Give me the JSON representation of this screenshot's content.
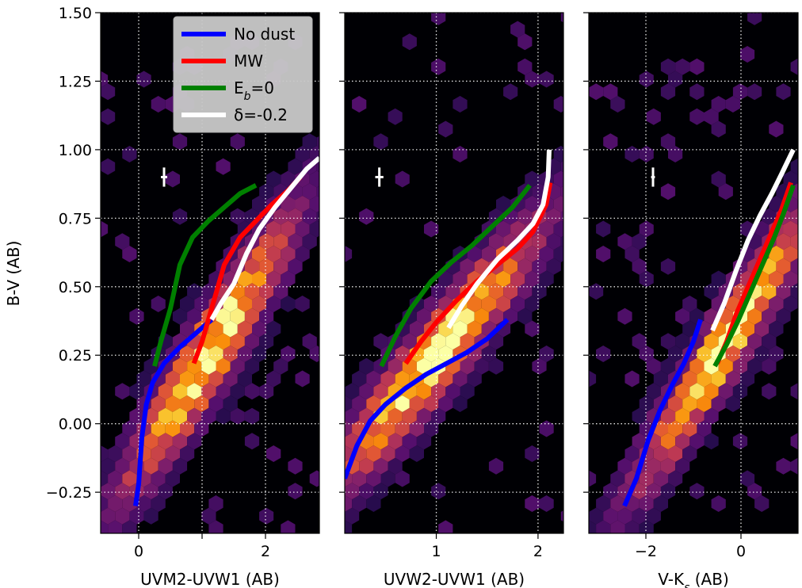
{
  "chart_data": {
    "type": "scatter",
    "shared_y": {
      "ylabel": "B-V (AB)",
      "ylim": [
        -0.4,
        1.5
      ],
      "yticks": [
        -0.25,
        0.0,
        0.25,
        0.5,
        0.75,
        1.0,
        1.25,
        1.5
      ],
      "ytick_labels": [
        "−0.25",
        "0.00",
        "0.25",
        "0.50",
        "0.75",
        "1.00",
        "1.25",
        "1.50"
      ]
    },
    "legend": {
      "placement": "top-right of first panel",
      "entries": [
        {
          "label": "No dust",
          "color": "#0000ff"
        },
        {
          "label": "MW",
          "color": "#ff0000"
        },
        {
          "label": "E_b=0",
          "label_main": "E",
          "label_sub": "b",
          "label_tail": "=0",
          "color": "#008000"
        },
        {
          "label": "δ=-0.2",
          "color": "#ffffff"
        }
      ]
    },
    "grid": true,
    "background": "#000004",
    "hexbin_colormap": "inferno",
    "panels": [
      {
        "xlabel": "UVM2-UVW1 (AB)",
        "xlim": [
          -0.6,
          2.85
        ],
        "xticks": [
          0,
          1,
          2
        ],
        "xtick_labels": [
          "0",
          "",
          "2"
        ],
        "density": {
          "center": [
            1.1,
            0.25
          ],
          "axis_slope": 0.36,
          "spread_along": 0.95,
          "spread_across": 0.11
        },
        "error_bar": {
          "x": 0.4,
          "y": 0.9,
          "xerr": 0.05,
          "yerr": 0.035
        },
        "series": [
          {
            "name": "No dust",
            "color": "#0000ff",
            "x": [
              -0.05,
              0.0,
              0.05,
              0.12,
              0.22,
              0.4,
              0.65,
              0.9,
              1.15
            ],
            "y": [
              -0.3,
              -0.22,
              -0.05,
              0.07,
              0.15,
              0.22,
              0.28,
              0.33,
              0.38
            ]
          },
          {
            "name": "MW",
            "color": "#ff0000",
            "x": [
              0.87,
              1.0,
              1.15,
              1.35,
              1.6,
              1.85,
              2.1,
              2.35,
              2.55
            ],
            "y": [
              0.22,
              0.3,
              0.42,
              0.58,
              0.68,
              0.74,
              0.8,
              0.85,
              0.9
            ]
          },
          {
            "name": "E_b=0",
            "color": "#008000",
            "x": [
              0.25,
              0.35,
              0.5,
              0.65,
              0.85,
              1.1,
              1.35,
              1.6,
              1.85
            ],
            "y": [
              0.21,
              0.3,
              0.42,
              0.58,
              0.68,
              0.74,
              0.79,
              0.84,
              0.87
            ]
          },
          {
            "name": "δ=-0.2",
            "color": "#ffffff",
            "x": [
              1.15,
              1.3,
              1.5,
              1.7,
              1.9,
              2.15,
              2.4,
              2.65,
              2.85
            ],
            "y": [
              0.38,
              0.44,
              0.51,
              0.62,
              0.71,
              0.79,
              0.86,
              0.93,
              0.97
            ]
          }
        ]
      },
      {
        "xlabel": "UVW2-UVW1 (AB)",
        "xlim": [
          0.1,
          2.25
        ],
        "xticks": [
          1,
          2
        ],
        "xtick_labels": [
          "1",
          "2"
        ],
        "density": {
          "center": [
            1.0,
            0.25
          ],
          "axis_slope": 0.45,
          "spread_along": 0.75,
          "spread_across": 0.1
        },
        "error_bar": {
          "x": 0.44,
          "y": 0.9,
          "xerr": 0.04,
          "yerr": 0.035
        },
        "series": [
          {
            "name": "No dust",
            "color": "#0000ff",
            "x": [
              0.1,
              0.22,
              0.35,
              0.5,
              0.7,
              0.9,
              1.1,
              1.3,
              1.5,
              1.7
            ],
            "y": [
              -0.2,
              -0.08,
              0.01,
              0.07,
              0.13,
              0.18,
              0.22,
              0.26,
              0.31,
              0.38
            ]
          },
          {
            "name": "MW",
            "color": "#ff0000",
            "x": [
              0.7,
              0.85,
              1.0,
              1.2,
              1.4,
              1.6,
              1.8,
              1.95,
              2.08,
              2.12
            ],
            "y": [
              0.22,
              0.3,
              0.37,
              0.45,
              0.52,
              0.58,
              0.64,
              0.7,
              0.8,
              0.88
            ]
          },
          {
            "name": "E_b=0",
            "color": "#008000",
            "x": [
              0.46,
              0.6,
              0.75,
              0.95,
              1.15,
              1.35,
              1.55,
              1.75,
              1.92
            ],
            "y": [
              0.21,
              0.32,
              0.42,
              0.52,
              0.59,
              0.65,
              0.72,
              0.79,
              0.87
            ]
          },
          {
            "name": "δ=-0.2",
            "color": "#ffffff",
            "x": [
              1.12,
              1.25,
              1.4,
              1.6,
              1.8,
              1.95,
              2.05,
              2.1,
              2.11
            ],
            "y": [
              0.35,
              0.43,
              0.51,
              0.6,
              0.67,
              0.73,
              0.8,
              0.9,
              1.0
            ]
          }
        ]
      },
      {
        "xlabel": "V-K_s (AB)",
        "xlabel_main": "V-K",
        "xlabel_sub": "s",
        "xlabel_tail": " (AB)",
        "xlim": [
          -3.2,
          1.2
        ],
        "xticks": [
          -2,
          0
        ],
        "xtick_labels": [
          "−2",
          "0"
        ],
        "density": {
          "center": [
            -0.3,
            0.3
          ],
          "axis_slope": 0.27,
          "spread_along": 1.3,
          "spread_across": 0.1
        },
        "error_bar": {
          "x": -1.85,
          "y": 0.9,
          "xerr": 0.04,
          "yerr": 0.035
        },
        "series": [
          {
            "name": "No dust",
            "color": "#0000ff",
            "x": [
              -2.45,
              -2.2,
              -1.95,
              -1.7,
              -1.45,
              -1.2,
              -1.0,
              -0.85
            ],
            "y": [
              -0.3,
              -0.2,
              -0.06,
              0.05,
              0.14,
              0.22,
              0.3,
              0.38
            ]
          },
          {
            "name": "MW",
            "color": "#ff0000",
            "x": [
              -0.5,
              -0.3,
              -0.1,
              0.15,
              0.4,
              0.65,
              0.85,
              1.05
            ],
            "y": [
              0.22,
              0.3,
              0.4,
              0.5,
              0.6,
              0.7,
              0.78,
              0.88
            ]
          },
          {
            "name": "E_b=0",
            "color": "#008000",
            "x": [
              -0.55,
              -0.3,
              -0.05,
              0.2,
              0.45,
              0.7,
              0.9,
              1.1
            ],
            "y": [
              0.21,
              0.29,
              0.38,
              0.48,
              0.58,
              0.68,
              0.77,
              0.87
            ]
          },
          {
            "name": "δ=-0.2",
            "color": "#ffffff",
            "x": [
              -0.6,
              -0.35,
              -0.1,
              0.15,
              0.4,
              0.65,
              0.85,
              1.1
            ],
            "y": [
              0.34,
              0.44,
              0.56,
              0.67,
              0.76,
              0.84,
              0.91,
              1.0
            ]
          }
        ]
      }
    ]
  }
}
